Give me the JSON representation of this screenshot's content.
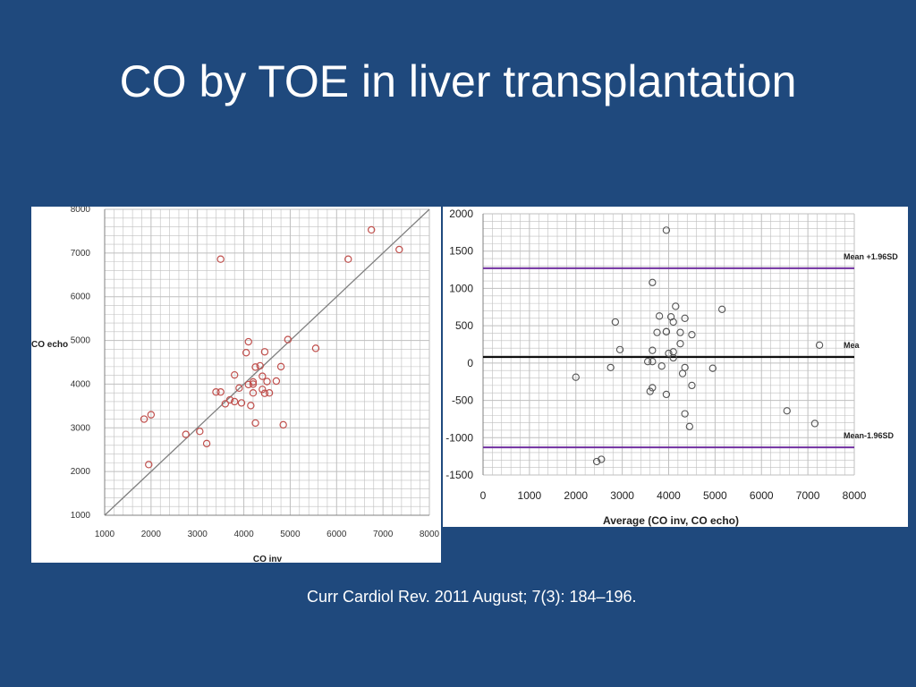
{
  "slide": {
    "title": "CO by TOE in liver transplantation",
    "citation": "Curr Cardiol Rev. 2011 August; 7(3): 184–196."
  },
  "colors": {
    "background": "#1f497d",
    "scatter_marker": "#c0504d",
    "bland_marker": "#555555",
    "limit_line": "#7030a0",
    "mean_line": "#000000",
    "grid": "#bfbfbf",
    "identity_line": "#7f7f7f"
  },
  "chart_data": [
    {
      "type": "scatter",
      "xlabel": "CO inv",
      "ylabel": "CO echo",
      "xlim": [
        1000,
        8000
      ],
      "ylim": [
        1000,
        8000
      ],
      "xticks": [
        1000,
        2000,
        3000,
        4000,
        5000,
        6000,
        7000,
        8000
      ],
      "yticks": [
        1000,
        2000,
        3000,
        4000,
        5000,
        6000,
        7000,
        8000
      ],
      "grid": true,
      "identity_line": true,
      "points": [
        [
          1850,
          3200
        ],
        [
          2000,
          3300
        ],
        [
          1950,
          2160
        ],
        [
          2750,
          2850
        ],
        [
          3050,
          2920
        ],
        [
          3200,
          2640
        ],
        [
          3400,
          3820
        ],
        [
          3500,
          3820
        ],
        [
          3500,
          6860
        ],
        [
          3600,
          3550
        ],
        [
          3700,
          3640
        ],
        [
          3800,
          3600
        ],
        [
          3800,
          4210
        ],
        [
          3900,
          3910
        ],
        [
          3950,
          3570
        ],
        [
          4050,
          4720
        ],
        [
          4100,
          4970
        ],
        [
          4100,
          3990
        ],
        [
          4150,
          3510
        ],
        [
          4200,
          3800
        ],
        [
          4200,
          4050
        ],
        [
          4200,
          4000
        ],
        [
          4250,
          4390
        ],
        [
          4250,
          3110
        ],
        [
          4350,
          4420
        ],
        [
          4400,
          3880
        ],
        [
          4400,
          4180
        ],
        [
          4450,
          4740
        ],
        [
          4450,
          3790
        ],
        [
          4500,
          4060
        ],
        [
          4550,
          3800
        ],
        [
          4700,
          4070
        ],
        [
          4800,
          4400
        ],
        [
          4850,
          3070
        ],
        [
          4950,
          5020
        ],
        [
          5550,
          4820
        ],
        [
          6250,
          6860
        ],
        [
          6750,
          7530
        ],
        [
          7350,
          7080
        ]
      ]
    },
    {
      "type": "scatter",
      "xlabel": "Average (CO inv, CO echo)",
      "ylabel": "",
      "xlim": [
        0,
        8000
      ],
      "ylim": [
        -1500,
        2000
      ],
      "xticks": [
        0,
        1000,
        2000,
        3000,
        4000,
        5000,
        6000,
        7000,
        8000
      ],
      "yticks": [
        -1500,
        -1000,
        -500,
        0,
        500,
        1000,
        1500,
        2000
      ],
      "grid": true,
      "reference_lines": [
        {
          "label": "Mean +1.96SD",
          "y": 1270,
          "color": "#7030a0"
        },
        {
          "label": "Mea",
          "y": 80,
          "color": "#000000"
        },
        {
          "label": "Mean-1.96SD",
          "y": -1130,
          "color": "#7030a0"
        }
      ],
      "points": [
        [
          2000,
          -190
        ],
        [
          2450,
          -1320
        ],
        [
          2550,
          -1290
        ],
        [
          2750,
          -60
        ],
        [
          2850,
          550
        ],
        [
          2950,
          180
        ],
        [
          3550,
          20
        ],
        [
          3600,
          -380
        ],
        [
          3650,
          1080
        ],
        [
          3650,
          -330
        ],
        [
          3650,
          20
        ],
        [
          3650,
          170
        ],
        [
          3750,
          410
        ],
        [
          3800,
          630
        ],
        [
          3850,
          -40
        ],
        [
          3950,
          420
        ],
        [
          3950,
          420
        ],
        [
          3950,
          1780
        ],
        [
          3950,
          -420
        ],
        [
          4000,
          130
        ],
        [
          4050,
          620
        ],
        [
          4100,
          70
        ],
        [
          4100,
          150
        ],
        [
          4100,
          550
        ],
        [
          4150,
          760
        ],
        [
          4250,
          410
        ],
        [
          4250,
          260
        ],
        [
          4300,
          -140
        ],
        [
          4350,
          -60
        ],
        [
          4350,
          -680
        ],
        [
          4350,
          600
        ],
        [
          4450,
          -850
        ],
        [
          4500,
          380
        ],
        [
          4500,
          -300
        ],
        [
          4950,
          -70
        ],
        [
          5150,
          720
        ],
        [
          6550,
          -640
        ],
        [
          7150,
          -810
        ],
        [
          7250,
          240
        ]
      ]
    }
  ]
}
